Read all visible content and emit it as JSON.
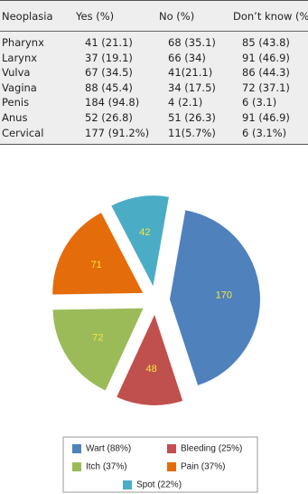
{
  "table": {
    "header": [
      "Neoplasia",
      "Yes (%)",
      "No (%)",
      "Don’t know (%"
    ],
    "rows": [
      [
        "Pharynx",
        "41 (21.1)",
        "68 (35.1)",
        "85 (43.8)"
      ],
      [
        "Larynx",
        "37 (19.1)",
        "66 (34)",
        "91 (46.9)"
      ],
      [
        "Vulva",
        "67 (34.5)",
        "41(21.1)",
        "86 (44.3)"
      ],
      [
        "Vagina",
        "88 (45.4)",
        "34 (17.5)",
        "72 (37.1)"
      ],
      [
        "Penis",
        "184 (94.8)",
        "4 (2.1)",
        "6 (3.1)"
      ],
      [
        "Anus",
        "52 (26.8)",
        "51 (26.3)",
        "91 (46.9)"
      ],
      [
        "Cervical",
        "177 (91.2%)",
        "11(5.7%)",
        "6 (3.1%)"
      ]
    ]
  },
  "chart_data": {
    "type": "pie",
    "categories": [
      "Wart (88%)",
      "Bleeding (25%)",
      "Itch (37%)",
      "Pain (37%)",
      "Spot (22%)"
    ],
    "values": [
      170,
      48,
      72,
      71,
      42
    ],
    "colors": [
      "#4f81bd",
      "#c0504d",
      "#9bbb59",
      "#e46c0a",
      "#4bacc6"
    ]
  }
}
